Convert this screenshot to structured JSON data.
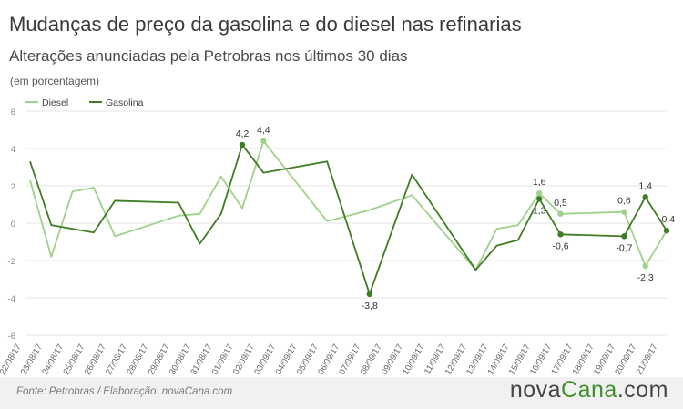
{
  "header": {
    "title": "Mudanças de preço da gasolina e do diesel nas refinarias",
    "subtitle": "Alterações anunciadas pela Petrobras nos últimos 30 dias",
    "unit": "(em porcentagem)"
  },
  "footer": {
    "source": "Fonte:  Petrobras  / Elaboração:  novaCana.com",
    "logo_main": "nova",
    "logo_accent": "Cana",
    "logo_tld": ".com"
  },
  "colors": {
    "diesel": "#9fd18b",
    "gasolina": "#3e7d22",
    "grid": "#e6e6e6",
    "axis_text": "#666666"
  },
  "chart_data": {
    "type": "line",
    "title": "Mudanças de preço da gasolina e do diesel nas refinarias",
    "subtitle": "Alterações anunciadas pela Petrobras nos últimos 30 dias",
    "ylabel": "(em porcentagem)",
    "ylim": [
      -6,
      6
    ],
    "yticks": [
      -6,
      -4,
      -2,
      0,
      2,
      4,
      6
    ],
    "grid": true,
    "legend": "top-left",
    "categories": [
      "22/08/17",
      "23/08/17",
      "24/08/17",
      "25/08/17",
      "26/08/17",
      "27/08/17",
      "28/08/17",
      "29/08/17",
      "30/08/17",
      "31/08/17",
      "01/09/17",
      "02/09/17",
      "03/09/17",
      "04/09/17",
      "05/09/17",
      "06/09/17",
      "07/09/17",
      "08/09/17",
      "09/09/17",
      "10/09/17",
      "11/09/17",
      "12/09/17",
      "13/09/17",
      "14/09/17",
      "15/09/17",
      "16/09/17",
      "17/09/17",
      "18/09/17",
      "19/09/17",
      "20/09/17",
      "21/09/17"
    ],
    "series": [
      {
        "name": "Diesel",
        "color": "#9fd18b",
        "points": [
          [
            "22/08/17",
            2.3
          ],
          [
            "23/08/17",
            -1.8
          ],
          [
            "24/08/17",
            1.7
          ],
          [
            "25/08/17",
            1.9
          ],
          [
            "26/08/17",
            -0.7
          ],
          [
            "29/08/17",
            0.4
          ],
          [
            "30/08/17",
            0.5
          ],
          [
            "31/08/17",
            2.5
          ],
          [
            "01/09/17",
            0.8
          ],
          [
            "02/09/17",
            4.4
          ],
          [
            "05/09/17",
            0.1
          ],
          [
            "07/09/17",
            0.7
          ],
          [
            "09/09/17",
            1.5
          ],
          [
            "12/09/17",
            -2.5
          ],
          [
            "13/09/17",
            -0.3
          ],
          [
            "14/09/17",
            -0.1
          ],
          [
            "15/09/17",
            1.6
          ],
          [
            "16/09/17",
            0.5
          ],
          [
            "19/09/17",
            0.6
          ],
          [
            "20/09/17",
            -2.3
          ],
          [
            "21/09/17",
            -0.4
          ]
        ]
      },
      {
        "name": "Gasolina",
        "color": "#3e7d22",
        "points": [
          [
            "22/08/17",
            3.3
          ],
          [
            "23/08/17",
            -0.1
          ],
          [
            "25/08/17",
            -0.5
          ],
          [
            "26/08/17",
            1.2
          ],
          [
            "29/08/17",
            1.1
          ],
          [
            "30/08/17",
            -1.1
          ],
          [
            "31/08/17",
            0.5
          ],
          [
            "01/09/17",
            4.2
          ],
          [
            "02/09/17",
            2.7
          ],
          [
            "05/09/17",
            3.3
          ],
          [
            "07/09/17",
            -3.8
          ],
          [
            "09/09/17",
            2.6
          ],
          [
            "12/09/17",
            -2.5
          ],
          [
            "13/09/17",
            -1.2
          ],
          [
            "14/09/17",
            -0.9
          ],
          [
            "15/09/17",
            1.3
          ],
          [
            "16/09/17",
            -0.6
          ],
          [
            "19/09/17",
            -0.7
          ],
          [
            "20/09/17",
            1.4
          ],
          [
            "21/09/17",
            -0.4
          ]
        ]
      }
    ],
    "annotations": [
      {
        "series": "Gasolina",
        "x": "01/09/17",
        "y": 4.2,
        "text": "4,2",
        "pos": "above"
      },
      {
        "series": "Diesel",
        "x": "02/09/17",
        "y": 4.4,
        "text": "4,4",
        "pos": "above"
      },
      {
        "series": "Gasolina",
        "x": "07/09/17",
        "y": -3.8,
        "text": "-3,8",
        "pos": "below"
      },
      {
        "series": "Diesel",
        "x": "15/09/17",
        "y": 1.6,
        "text": "1,6",
        "pos": "above"
      },
      {
        "series": "Gasolina",
        "x": "15/09/17",
        "y": 1.3,
        "text": "1,3",
        "pos": "below"
      },
      {
        "series": "Diesel",
        "x": "16/09/17",
        "y": 0.5,
        "text": "0,5",
        "pos": "above"
      },
      {
        "series": "Gasolina",
        "x": "16/09/17",
        "y": -0.6,
        "text": "-0,6",
        "pos": "below"
      },
      {
        "series": "Diesel",
        "x": "19/09/17",
        "y": 0.6,
        "text": "0,6",
        "pos": "above"
      },
      {
        "series": "Gasolina",
        "x": "19/09/17",
        "y": -0.7,
        "text": "-0,7",
        "pos": "below"
      },
      {
        "series": "Gasolina",
        "x": "20/09/17",
        "y": 1.4,
        "text": "1,4",
        "pos": "above"
      },
      {
        "series": "Diesel",
        "x": "20/09/17",
        "y": -2.3,
        "text": "-2,3",
        "pos": "below"
      },
      {
        "series": "Gasolina",
        "x": "21/09/17",
        "y": -0.4,
        "text": "-0,4",
        "pos": "above"
      }
    ]
  }
}
